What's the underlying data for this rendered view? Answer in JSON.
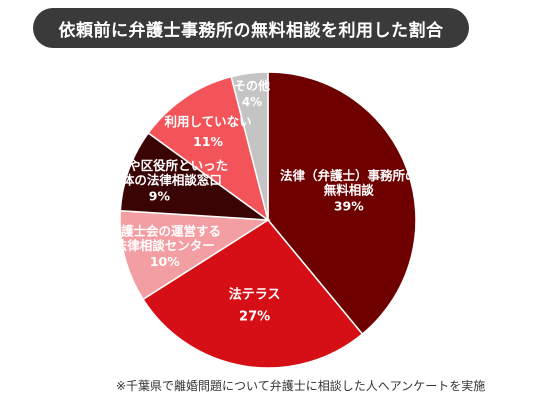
{
  "colors": {
    "title_bg": "#3a3a3a",
    "slices": [
      "#6e0000",
      "#d60f16",
      "#f29ea2",
      "#3b0404",
      "#f2545a",
      "#c4c4c4"
    ]
  },
  "chart_data": {
    "type": "pie",
    "title": "依頼前に弁護士事務所の無料相談を利用した割合",
    "unit": "%",
    "slices": [
      {
        "lines": [
          "法律（弁護士）事務所の",
          "無料相談"
        ],
        "value": 39
      },
      {
        "lines": [
          "法テラス"
        ],
        "value": 27
      },
      {
        "lines": [
          "弁護士会の運営する",
          "法律相談センター"
        ],
        "value": 10
      },
      {
        "lines": [
          "市役所や区役所といった",
          "自治体の法律相談窓口"
        ],
        "value": 9
      },
      {
        "lines": [
          "利用していない"
        ],
        "value": 11
      },
      {
        "lines": [
          "その他"
        ],
        "value": 4
      }
    ],
    "start": "top",
    "direction": "clockwise",
    "legend": "none",
    "footnote": "※千葉県で離婚問題について弁護士に相談した人へアンケートを実施"
  }
}
